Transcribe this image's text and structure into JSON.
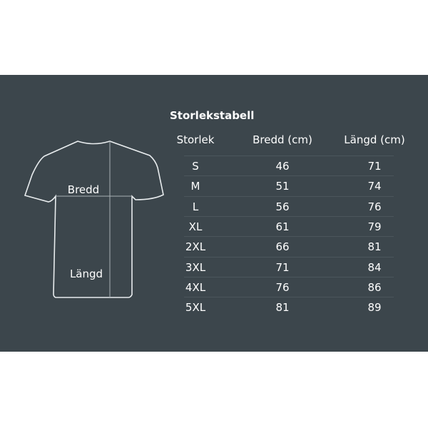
{
  "diagram": {
    "width_label": "Bredd",
    "length_label": "Längd"
  },
  "table": {
    "title": "Storlekstabell",
    "headers": [
      "Storlek",
      "Bredd (cm)",
      "Längd (cm)"
    ],
    "rows": [
      [
        "S",
        "46",
        "71"
      ],
      [
        "M",
        "51",
        "74"
      ],
      [
        "L",
        "56",
        "76"
      ],
      [
        "XL",
        "61",
        "79"
      ],
      [
        "2XL",
        "66",
        "81"
      ],
      [
        "3XL",
        "71",
        "84"
      ],
      [
        "4XL",
        "76",
        "86"
      ],
      [
        "5XL",
        "81",
        "89"
      ]
    ]
  },
  "colors": {
    "background": "#3c464c",
    "text": "#ffffff"
  }
}
